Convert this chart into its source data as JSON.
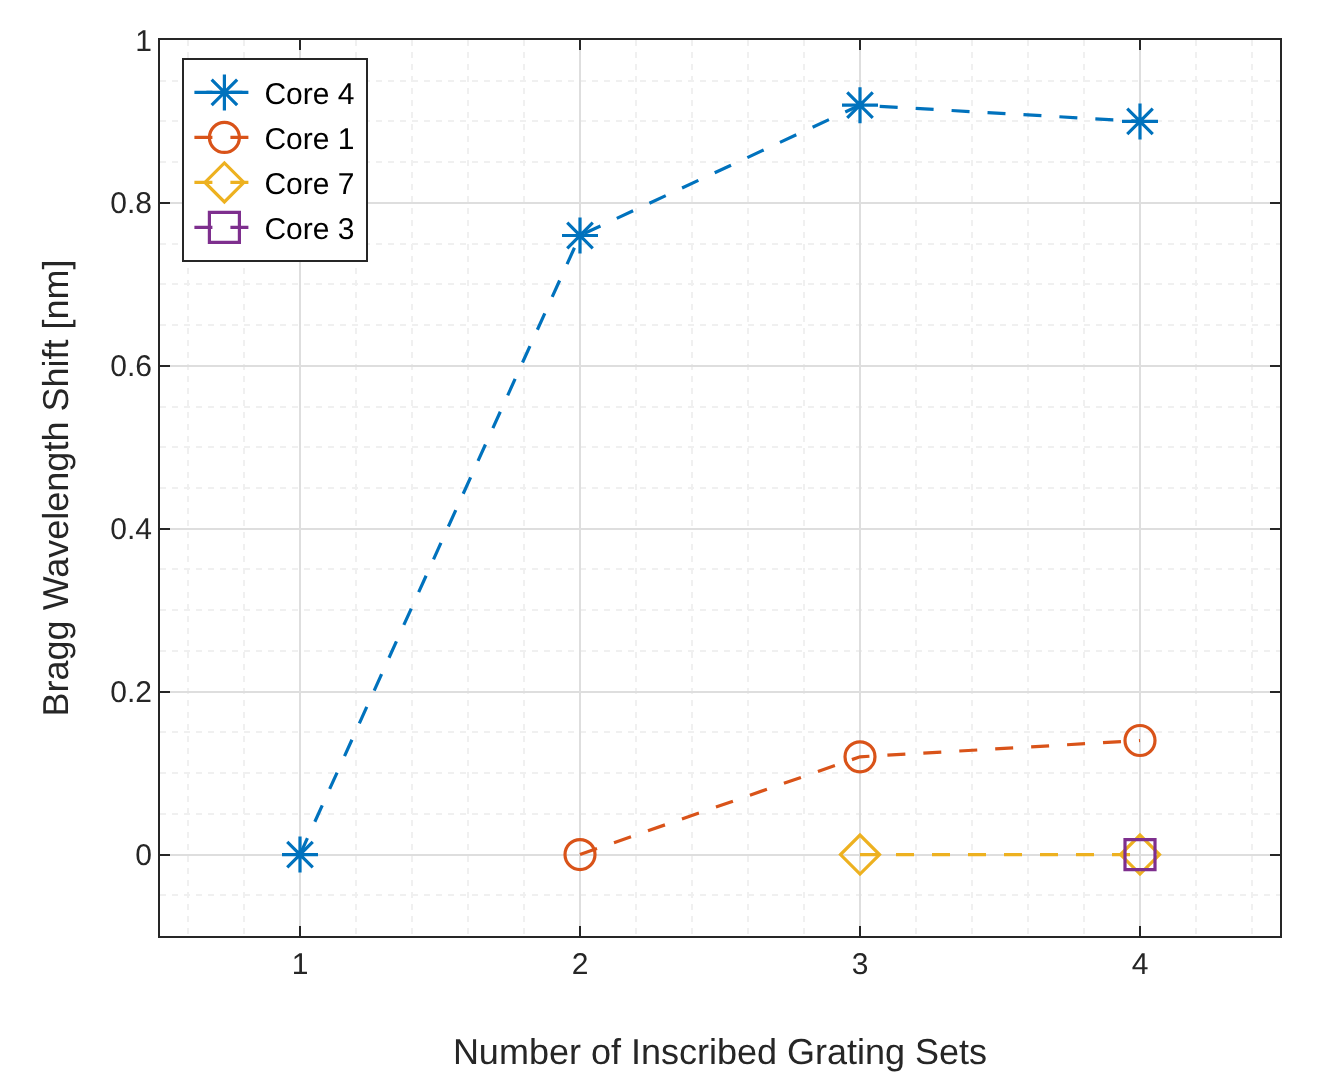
{
  "chart_data": {
    "type": "line",
    "xlabel": "Number of Inscribed Grating Sets",
    "ylabel": "Bragg Wavelength Shift [nm]",
    "xlim": [
      0.5,
      4.5
    ],
    "xticks": [
      1,
      2,
      3,
      4
    ],
    "ylim": [
      -0.1,
      1
    ],
    "yticks": [
      0,
      0.2,
      0.4,
      0.6,
      0.8,
      1
    ],
    "grid": true,
    "legend": "top left",
    "line_style": "dashed",
    "series": [
      {
        "name": "Core 4",
        "color": "#0072bd",
        "marker": "cross",
        "x": [
          1,
          2,
          3,
          4
        ],
        "values": [
          0,
          0.76,
          0.92,
          0.9
        ]
      },
      {
        "name": "Core 1",
        "color": "#d95319",
        "marker": "circle",
        "x": [
          2,
          3,
          4
        ],
        "values": [
          0,
          0.12,
          0.14
        ]
      },
      {
        "name": "Core 7",
        "color": "#edb120",
        "marker": "diamond",
        "x": [
          3,
          4
        ],
        "values": [
          0,
          0
        ]
      },
      {
        "name": "Core 3",
        "color": "#7e2f8e",
        "marker": "square",
        "x": [
          4
        ],
        "values": [
          0
        ]
      }
    ]
  }
}
